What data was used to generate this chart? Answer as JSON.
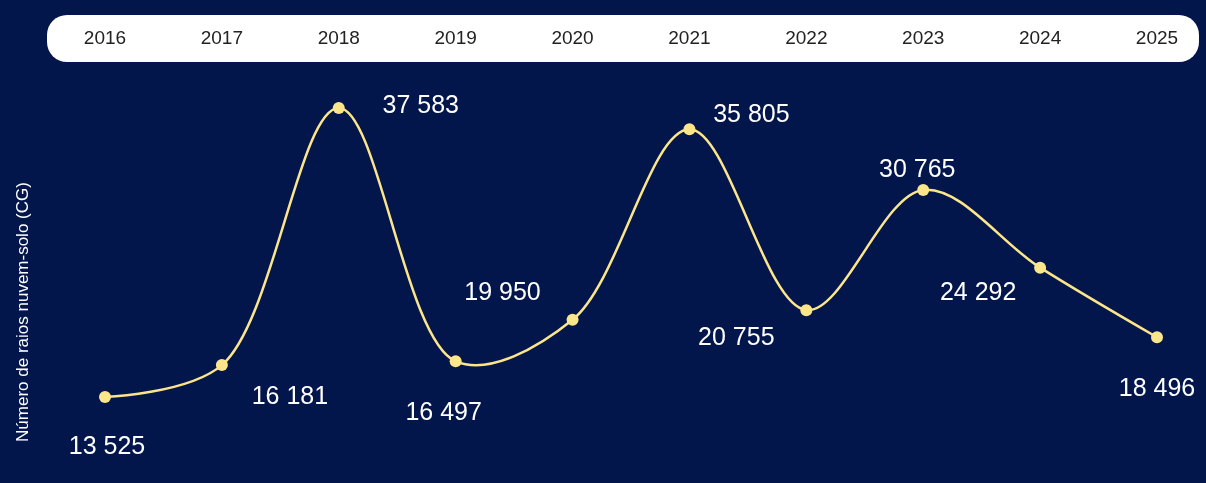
{
  "chart_data": {
    "type": "line",
    "ylabel": "Número de raios nuvem-solo (CG)",
    "categories": [
      "2016",
      "2017",
      "2018",
      "2019",
      "2020",
      "2021",
      "2022",
      "2023",
      "2024",
      "2025"
    ],
    "series": [
      {
        "color": "#fde68a",
        "values": [
          13525,
          16181,
          37583,
          16497,
          19950,
          35805,
          20755,
          30765,
          24292,
          18496
        ],
        "value_labels": [
          "13 525",
          "16 181",
          "37 583",
          "16 497",
          "19 950",
          "35 805",
          "20 755",
          "30 765",
          "24 292",
          "18 496"
        ]
      }
    ],
    "marker": "circle",
    "line_style": "solid",
    "grid": false
  }
}
